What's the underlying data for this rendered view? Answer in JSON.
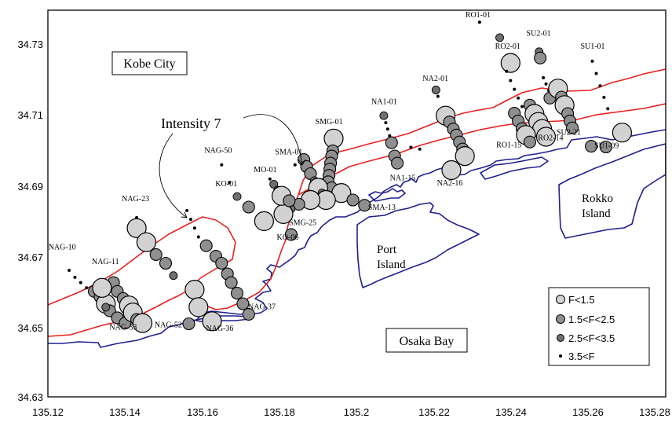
{
  "map": {
    "x_ticks": [
      "135.12",
      "135.14",
      "135.16",
      "135.18",
      "135.2",
      "135.22",
      "135.24",
      "135.26",
      "135.28"
    ],
    "y_ticks": [
      "34.73",
      "34.71",
      "34.69",
      "34.67",
      "34.65",
      "34.63"
    ],
    "x_range": [
      135.12,
      135.28
    ],
    "y_range": [
      34.63,
      34.74
    ],
    "colors": {
      "coastline": "#1f1f8f",
      "intensity_line": "#e8201e",
      "light_marker": "#d2d2d2",
      "mid_marker": "#8f8f8f",
      "dark_marker": "#6f6f6f",
      "small_dot": "#000000"
    }
  },
  "labels": {
    "kobe_city": "Kobe City",
    "intensity": "Intensity 7",
    "port_island": [
      "Port",
      "Island"
    ],
    "rokko_island": [
      "Rokko",
      "Island"
    ],
    "osaka_bay": "Osaka Bay"
  },
  "legend": [
    {
      "label": "F<1.5",
      "class": "F<1.5"
    },
    {
      "label": "1.5<F<2.5",
      "class": "1.5<F<2.5"
    },
    {
      "label": "2.5<F<3.5",
      "class": "2.5<F<3.5"
    },
    {
      "label": "3.5<F",
      "class": "3.5<F"
    }
  ],
  "line_labels": [
    {
      "text": "RO1-01",
      "lon": 135.2318,
      "lat": 34.7366
    },
    {
      "text": "SU2-01",
      "lon": 135.2475,
      "lat": 34.7314
    },
    {
      "text": "RO2-01",
      "lon": 135.2395,
      "lat": 34.7277
    },
    {
      "text": "SU1-01",
      "lon": 135.2615,
      "lat": 34.7277
    },
    {
      "text": "NA2-01",
      "lon": 135.2208,
      "lat": 34.7185
    },
    {
      "text": "NA1-01",
      "lon": 135.2075,
      "lat": 34.7119
    },
    {
      "text": "SMG-01",
      "lon": 135.1932,
      "lat": 34.7062
    },
    {
      "text": "SMA-01",
      "lon": 135.1828,
      "lat": 34.6976
    },
    {
      "text": "MO-01",
      "lon": 135.1767,
      "lat": 34.6926
    },
    {
      "text": "NAG-50",
      "lon": 135.1645,
      "lat": 34.6981
    },
    {
      "text": "KO-01",
      "lon": 135.1666,
      "lat": 34.6886
    },
    {
      "text": "NAG-23",
      "lon": 135.1431,
      "lat": 34.6843
    },
    {
      "text": "NAG-10",
      "lon": 135.1241,
      "lat": 34.6706
    },
    {
      "text": "NAG-11",
      "lon": 135.1353,
      "lat": 34.6664
    },
    {
      "text": "RO1-15",
      "lon": 135.2398,
      "lat": 34.6996
    },
    {
      "text": "RO2-14",
      "lon": 135.2506,
      "lat": 34.7017
    },
    {
      "text": "SU2-21",
      "lon": 135.2553,
      "lat": 34.7032
    },
    {
      "text": "SU1-09",
      "lon": 135.2651,
      "lat": 34.6994
    },
    {
      "text": "NA1-15",
      "lon": 135.2123,
      "lat": 34.6903
    },
    {
      "text": "NA2-16",
      "lon": 135.2245,
      "lat": 34.6888
    },
    {
      "text": "SMA-13",
      "lon": 135.2069,
      "lat": 34.6819
    },
    {
      "text": "SMG-25",
      "lon": 135.1864,
      "lat": 34.6775
    },
    {
      "text": "KO-06",
      "lon": 135.1825,
      "lat": 34.6734
    },
    {
      "text": "NAG-37",
      "lon": 135.1758,
      "lat": 34.6536
    },
    {
      "text": "NAG-33",
      "lon": 135.1399,
      "lat": 34.6478
    },
    {
      "text": "NAG-52",
      "lon": 135.1516,
      "lat": 34.6484
    },
    {
      "text": "NAG-36",
      "lon": 135.1649,
      "lat": 34.6474
    }
  ],
  "stations": [
    {
      "lon": 135.2318,
      "lat": 34.7366,
      "f": "3.5<F"
    },
    {
      "lon": 135.237,
      "lat": 34.7322,
      "f": "2.5<F<3.5"
    },
    {
      "lon": 135.2398,
      "lat": 34.725,
      "f": "F<1.5"
    },
    {
      "lon": 135.2472,
      "lat": 34.7282,
      "f": "2.5<F<3.5"
    },
    {
      "lon": 135.2475,
      "lat": 34.7264,
      "f": "1.5<F<2.5"
    },
    {
      "lon": 135.261,
      "lat": 34.7255,
      "f": "3.5<F"
    },
    {
      "lon": 135.262,
      "lat": 34.722,
      "f": "3.5<F"
    },
    {
      "lon": 135.263,
      "lat": 34.7185,
      "f": "3.5<F"
    },
    {
      "lon": 135.264,
      "lat": 34.7152,
      "f": "3.5<F"
    },
    {
      "lon": 135.265,
      "lat": 34.712,
      "f": "3.5<F"
    },
    {
      "lon": 135.2687,
      "lat": 34.7052,
      "f": "F<1.5"
    },
    {
      "lon": 135.2645,
      "lat": 34.7011,
      "f": "1.5<F<2.5"
    },
    {
      "lon": 135.2607,
      "lat": 34.7013,
      "f": "1.5<F<2.5"
    },
    {
      "lon": 135.2388,
      "lat": 34.7226,
      "f": "3.5<F"
    },
    {
      "lon": 135.2398,
      "lat": 34.72,
      "f": "3.5<F"
    },
    {
      "lon": 135.2408,
      "lat": 34.7175,
      "f": "3.5<F"
    },
    {
      "lon": 135.2418,
      "lat": 34.715,
      "f": "3.5<F"
    },
    {
      "lon": 135.2428,
      "lat": 34.7126,
      "f": "3.5<F"
    },
    {
      "lon": 135.2448,
      "lat": 34.713,
      "f": "1.5<F<2.5"
    },
    {
      "lon": 135.246,
      "lat": 34.7105,
      "f": "F<1.5"
    },
    {
      "lon": 135.247,
      "lat": 34.7082,
      "f": "F<1.5"
    },
    {
      "lon": 135.248,
      "lat": 34.7062,
      "f": "F<1.5"
    },
    {
      "lon": 135.249,
      "lat": 34.704,
      "f": "F<1.5"
    },
    {
      "lon": 135.25,
      "lat": 34.715,
      "f": "1.5<F<2.5"
    },
    {
      "lon": 135.2483,
      "lat": 34.7208,
      "f": "3.5<F"
    },
    {
      "lon": 135.249,
      "lat": 34.719,
      "f": "3.5<F"
    },
    {
      "lon": 135.2497,
      "lat": 34.7172,
      "f": "3.5<F"
    },
    {
      "lon": 135.2521,
      "lat": 34.7177,
      "f": "F<1.5"
    },
    {
      "lon": 135.253,
      "lat": 34.7153,
      "f": "1.5<F<2.5"
    },
    {
      "lon": 135.2538,
      "lat": 34.713,
      "f": "F<1.5"
    },
    {
      "lon": 135.2546,
      "lat": 34.7106,
      "f": "1.5<F<2.5"
    },
    {
      "lon": 135.2552,
      "lat": 34.7085,
      "f": "1.5<F<2.5"
    },
    {
      "lon": 135.2558,
      "lat": 34.7065,
      "f": "1.5<F<2.5"
    },
    {
      "lon": 135.2408,
      "lat": 34.7107,
      "f": "1.5<F<2.5"
    },
    {
      "lon": 135.2418,
      "lat": 34.7085,
      "f": "1.5<F<2.5"
    },
    {
      "lon": 135.2428,
      "lat": 34.7063,
      "f": "1.5<F<2.5"
    },
    {
      "lon": 135.2438,
      "lat": 34.7045,
      "f": "F<1.5"
    },
    {
      "lon": 135.2448,
      "lat": 34.7025,
      "f": "1.5<F<2.5"
    },
    {
      "lon": 135.2205,
      "lat": 34.7173,
      "f": "2.5<F<3.5"
    },
    {
      "lon": 135.221,
      "lat": 34.7155,
      "f": "3.5<F"
    },
    {
      "lon": 135.223,
      "lat": 34.71,
      "f": "F<1.5"
    },
    {
      "lon": 135.224,
      "lat": 34.7082,
      "f": "1.5<F<2.5"
    },
    {
      "lon": 135.225,
      "lat": 34.7062,
      "f": "1.5<F<2.5"
    },
    {
      "lon": 135.2258,
      "lat": 34.7045,
      "f": "1.5<F<2.5"
    },
    {
      "lon": 135.2266,
      "lat": 34.7025,
      "f": "1.5<F<2.5"
    },
    {
      "lon": 135.2274,
      "lat": 34.7005,
      "f": "1.5<F<2.5"
    },
    {
      "lon": 135.228,
      "lat": 34.6985,
      "f": "F<1.5"
    },
    {
      "lon": 135.2245,
      "lat": 34.6945,
      "f": "F<1.5"
    },
    {
      "lon": 135.207,
      "lat": 34.71,
      "f": "2.5<F<3.5"
    },
    {
      "lon": 135.2075,
      "lat": 34.708,
      "f": "3.5<F"
    },
    {
      "lon": 135.208,
      "lat": 34.7062,
      "f": "3.5<F"
    },
    {
      "lon": 135.2085,
      "lat": 34.7043,
      "f": "3.5<F"
    },
    {
      "lon": 135.209,
      "lat": 34.7023,
      "f": "1.5<F<2.5"
    },
    {
      "lon": 135.2098,
      "lat": 34.6985,
      "f": "1.5<F<2.5"
    },
    {
      "lon": 135.2105,
      "lat": 34.6965,
      "f": "1.5<F<2.5"
    },
    {
      "lon": 135.214,
      "lat": 34.701,
      "f": "3.5<F"
    },
    {
      "lon": 135.2163,
      "lat": 34.7005,
      "f": "3.5<F"
    },
    {
      "lon": 135.194,
      "lat": 34.7035,
      "f": "F<1.5"
    },
    {
      "lon": 135.1938,
      "lat": 34.7,
      "f": "1.5<F<2.5"
    },
    {
      "lon": 135.1935,
      "lat": 34.6985,
      "f": "1.5<F<2.5"
    },
    {
      "lon": 135.1932,
      "lat": 34.6965,
      "f": "1.5<F<2.5"
    },
    {
      "lon": 135.193,
      "lat": 34.6948,
      "f": "1.5<F<2.5"
    },
    {
      "lon": 135.1928,
      "lat": 34.693,
      "f": "1.5<F<2.5"
    },
    {
      "lon": 135.1926,
      "lat": 34.6912,
      "f": "1.5<F<2.5"
    },
    {
      "lon": 135.1935,
      "lat": 34.6895,
      "f": "1.5<F<2.5"
    },
    {
      "lon": 135.196,
      "lat": 34.688,
      "f": "F<1.5"
    },
    {
      "lon": 135.199,
      "lat": 34.686,
      "f": "1.5<F<2.5"
    },
    {
      "lon": 135.202,
      "lat": 34.6845,
      "f": "1.5<F<2.5"
    },
    {
      "lon": 135.184,
      "lat": 34.696,
      "f": "3.5<F"
    },
    {
      "lon": 135.1863,
      "lat": 34.6975,
      "f": "1.5<F<2.5"
    },
    {
      "lon": 135.187,
      "lat": 34.6955,
      "f": "1.5<F<2.5"
    },
    {
      "lon": 135.188,
      "lat": 34.6935,
      "f": "1.5<F<2.5"
    },
    {
      "lon": 135.189,
      "lat": 34.6915,
      "f": "2.5<F<3.5"
    },
    {
      "lon": 135.19,
      "lat": 34.6895,
      "f": "F<1.5"
    },
    {
      "lon": 135.191,
      "lat": 34.688,
      "f": "2.5<F<3.5"
    },
    {
      "lon": 135.192,
      "lat": 34.686,
      "f": "F<1.5"
    },
    {
      "lon": 135.188,
      "lat": 34.686,
      "f": "F<1.5"
    },
    {
      "lon": 135.185,
      "lat": 34.6848,
      "f": "1.5<F<2.5"
    },
    {
      "lon": 135.183,
      "lat": 34.6835,
      "f": "2.5<F<3.5"
    },
    {
      "lon": 135.181,
      "lat": 34.682,
      "f": "F<1.5"
    },
    {
      "lon": 135.1775,
      "lat": 34.692,
      "f": "3.5<F"
    },
    {
      "lon": 135.1785,
      "lat": 34.6905,
      "f": "2.5<F<3.5"
    },
    {
      "lon": 135.1795,
      "lat": 34.6888,
      "f": "2.5<F<3.5"
    },
    {
      "lon": 135.1805,
      "lat": 34.6872,
      "f": "F<1.5"
    },
    {
      "lon": 135.1825,
      "lat": 34.6858,
      "f": "1.5<F<2.5"
    },
    {
      "lon": 135.169,
      "lat": 34.687,
      "f": "2.5<F<3.5"
    },
    {
      "lon": 135.172,
      "lat": 34.684,
      "f": "1.5<F<2.5"
    },
    {
      "lon": 135.176,
      "lat": 34.68,
      "f": "F<1.5"
    },
    {
      "lon": 135.183,
      "lat": 34.6762,
      "f": "1.5<F<2.5"
    },
    {
      "lon": 135.165,
      "lat": 34.696,
      "f": "3.5<F"
    },
    {
      "lon": 135.167,
      "lat": 34.691,
      "f": "3.5<F"
    },
    {
      "lon": 135.143,
      "lat": 34.681,
      "f": "3.5<F"
    },
    {
      "lon": 135.143,
      "lat": 34.678,
      "f": "F<1.5"
    },
    {
      "lon": 135.1455,
      "lat": 34.674,
      "f": "F<1.5"
    },
    {
      "lon": 135.148,
      "lat": 34.6705,
      "f": "1.5<F<2.5"
    },
    {
      "lon": 135.1505,
      "lat": 34.668,
      "f": "1.5<F<2.5"
    },
    {
      "lon": 135.1525,
      "lat": 34.6645,
      "f": "2.5<F<3.5"
    },
    {
      "lon": 135.156,
      "lat": 34.683,
      "f": "3.5<F"
    },
    {
      "lon": 135.157,
      "lat": 34.6805,
      "f": "3.5<F"
    },
    {
      "lon": 135.158,
      "lat": 34.678,
      "f": "3.5<F"
    },
    {
      "lon": 135.159,
      "lat": 34.6755,
      "f": "3.5<F"
    },
    {
      "lon": 135.161,
      "lat": 34.673,
      "f": "1.5<F<2.5"
    },
    {
      "lon": 135.1635,
      "lat": 34.67,
      "f": "1.5<F<2.5"
    },
    {
      "lon": 135.165,
      "lat": 34.668,
      "f": "1.5<F<2.5"
    },
    {
      "lon": 135.1665,
      "lat": 34.665,
      "f": "1.5<F<2.5"
    },
    {
      "lon": 135.1675,
      "lat": 34.6625,
      "f": "1.5<F<2.5"
    },
    {
      "lon": 135.169,
      "lat": 34.6595,
      "f": "1.5<F<2.5"
    },
    {
      "lon": 135.1705,
      "lat": 34.6565,
      "f": "1.5<F<2.5"
    },
    {
      "lon": 135.172,
      "lat": 34.6535,
      "f": "1.5<F<2.5"
    },
    {
      "lon": 135.158,
      "lat": 34.6605,
      "f": "F<1.5"
    },
    {
      "lon": 135.159,
      "lat": 34.6555,
      "f": "F<1.5"
    },
    {
      "lon": 135.1565,
      "lat": 34.6508,
      "f": "1.5<F<2.5"
    },
    {
      "lon": 135.1625,
      "lat": 34.6515,
      "f": "F<1.5"
    },
    {
      "lon": 135.1255,
      "lat": 34.666,
      "f": "3.5<F"
    },
    {
      "lon": 135.127,
      "lat": 34.664,
      "f": "3.5<F"
    },
    {
      "lon": 135.1285,
      "lat": 34.6625,
      "f": "3.5<F"
    },
    {
      "lon": 135.13,
      "lat": 34.661,
      "f": "3.5<F"
    },
    {
      "lon": 135.132,
      "lat": 34.66,
      "f": "1.5<F<2.5"
    },
    {
      "lon": 135.1335,
      "lat": 34.6585,
      "f": "1.5<F<2.5"
    },
    {
      "lon": 135.135,
      "lat": 34.6565,
      "f": "F<1.5"
    },
    {
      "lon": 135.136,
      "lat": 34.6545,
      "f": "1.5<F<2.5"
    },
    {
      "lon": 135.138,
      "lat": 34.6525,
      "f": "1.5<F<2.5"
    },
    {
      "lon": 135.14,
      "lat": 34.651,
      "f": "1.5<F<2.5"
    },
    {
      "lon": 135.137,
      "lat": 34.6625,
      "f": "1.5<F<2.5"
    },
    {
      "lon": 135.138,
      "lat": 34.66,
      "f": "1.5<F<2.5"
    },
    {
      "lon": 135.1395,
      "lat": 34.658,
      "f": "1.5<F<2.5"
    },
    {
      "lon": 135.141,
      "lat": 34.656,
      "f": "F<1.5"
    },
    {
      "lon": 135.142,
      "lat": 34.654,
      "f": "F<1.5"
    },
    {
      "lon": 135.143,
      "lat": 34.652,
      "f": "1.5<F<2.5"
    },
    {
      "lon": 135.1445,
      "lat": 34.651,
      "f": "F<1.5"
    },
    {
      "lon": 135.135,
      "lat": 34.6555,
      "f": "2.5<F<3.5"
    },
    {
      "lon": 135.134,
      "lat": 34.661,
      "f": "F<1.5"
    }
  ]
}
